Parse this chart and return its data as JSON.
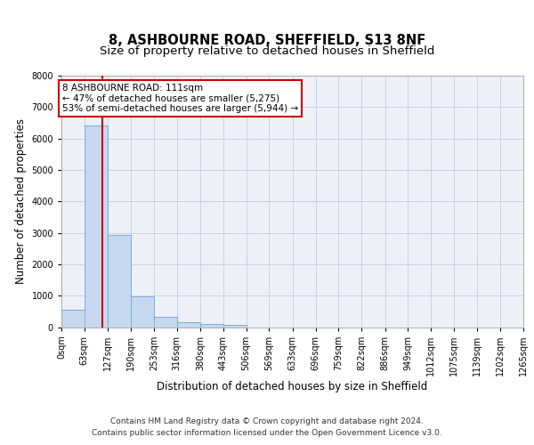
{
  "title": "8, ASHBOURNE ROAD, SHEFFIELD, S13 8NF",
  "subtitle": "Size of property relative to detached houses in Sheffield",
  "xlabel": "Distribution of detached houses by size in Sheffield",
  "ylabel": "Number of detached properties",
  "footer_line1": "Contains HM Land Registry data © Crown copyright and database right 2024.",
  "footer_line2": "Contains public sector information licensed under the Open Government Licence v3.0.",
  "bin_labels": [
    "0sqm",
    "63sqm",
    "127sqm",
    "190sqm",
    "253sqm",
    "316sqm",
    "380sqm",
    "443sqm",
    "506sqm",
    "569sqm",
    "633sqm",
    "696sqm",
    "759sqm",
    "822sqm",
    "886sqm",
    "949sqm",
    "1012sqm",
    "1075sqm",
    "1139sqm",
    "1202sqm",
    "1265sqm"
  ],
  "bin_edges": [
    0,
    63,
    127,
    190,
    253,
    316,
    380,
    443,
    506,
    569,
    633,
    696,
    759,
    822,
    886,
    949,
    1012,
    1075,
    1139,
    1202,
    1265
  ],
  "bar_values": [
    550,
    6420,
    2940,
    970,
    325,
    155,
    100,
    75,
    0,
    0,
    0,
    0,
    0,
    0,
    0,
    0,
    0,
    0,
    0,
    0
  ],
  "bar_color": "#c5d8f0",
  "bar_edge_color": "#7aaed6",
  "grid_color": "#c8cfe8",
  "background_color": "#eef0f8",
  "red_line_x": 111,
  "red_line_color": "#cc0000",
  "annotation_line1": "8 ASHBOURNE ROAD: 111sqm",
  "annotation_line2": "← 47% of detached houses are smaller (5,275)",
  "annotation_line3": "53% of semi-detached houses are larger (5,944) →",
  "annotation_box_color": "#cc0000",
  "ylim": [
    0,
    8000
  ],
  "yticks": [
    0,
    1000,
    2000,
    3000,
    4000,
    5000,
    6000,
    7000,
    8000
  ],
  "title_fontsize": 10.5,
  "subtitle_fontsize": 9.5,
  "axis_label_fontsize": 8.5,
  "tick_fontsize": 7,
  "annotation_fontsize": 7.5,
  "footer_fontsize": 6.5
}
